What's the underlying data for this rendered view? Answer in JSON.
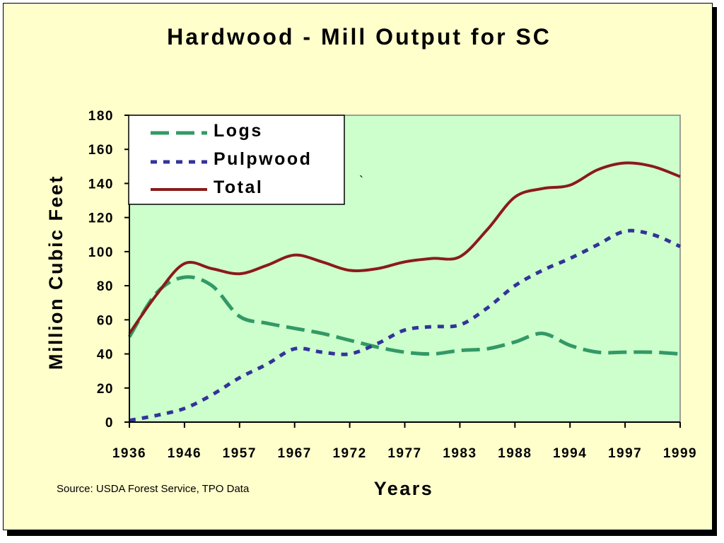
{
  "chart_data": {
    "type": "line",
    "title": "Hardwood - Mill Output for SC",
    "xlabel": "Years",
    "ylabel": "Million Cubic Feet",
    "ylim": [
      0,
      180
    ],
    "yticks": [
      0,
      20,
      40,
      60,
      80,
      100,
      120,
      140,
      160,
      180
    ],
    "categories": [
      "1936",
      "1946",
      "1957",
      "1967",
      "1972",
      "1977",
      "1983",
      "1988",
      "1994",
      "1997",
      "1999"
    ],
    "x": [
      0,
      0.5,
      1,
      1.5,
      2,
      2.5,
      3,
      3.5,
      4,
      4.5,
      5,
      5.5,
      6,
      6.5,
      7,
      7.5,
      8,
      8.5,
      9,
      9.5,
      10
    ],
    "series": [
      {
        "name": "Logs",
        "style": "dashed",
        "color": "#339966",
        "values": [
          50,
          76,
          85,
          80,
          62,
          58,
          55,
          52,
          48,
          44,
          41,
          40,
          42,
          43,
          47,
          52,
          45,
          41,
          41,
          41,
          40
        ]
      },
      {
        "name": "Pulpwood",
        "style": "dotted",
        "color": "#333399",
        "values": [
          1,
          4,
          8,
          16,
          26,
          34,
          43,
          41,
          40,
          46,
          54,
          56,
          57,
          67,
          80,
          89,
          96,
          104,
          112,
          110,
          103
        ]
      },
      {
        "name": "Total",
        "style": "solid",
        "color": "#8b1a1a",
        "values": [
          52,
          75,
          93,
          90,
          87,
          92,
          98,
          94,
          89,
          90,
          94,
          96,
          97,
          113,
          132,
          137,
          139,
          148,
          152,
          150,
          144
        ]
      }
    ],
    "grid": false,
    "legend": "top-left",
    "plot_background": "#ccffcc",
    "page_background": "#ffffcc",
    "annotations": [
      "`"
    ],
    "source": "Source:  USDA Forest Service, TPO Data"
  }
}
